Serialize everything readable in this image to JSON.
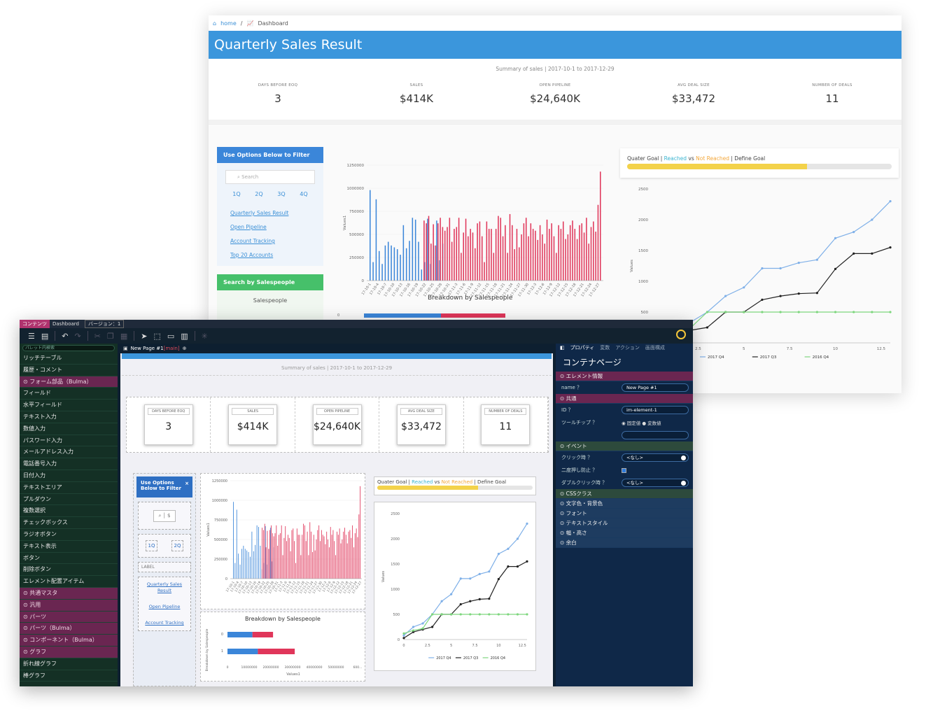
{
  "back": {
    "breadcrumb": {
      "home": "home",
      "sep": "/",
      "current": "Dashboard"
    },
    "title": "Quarterly Sales Result",
    "summary": "Summary of sales | 2017-10-1 to 2017-12-29",
    "kpis": [
      {
        "label": "DAYS BEFORE EOQ",
        "value": "3"
      },
      {
        "label": "SALES",
        "value": "$414K"
      },
      {
        "label": "OPEN PIPELINE",
        "value": "$24,640K"
      },
      {
        "label": "AVG DEAL SIZE",
        "value": "$33,472"
      },
      {
        "label": "NUMBER OF DEALS",
        "value": "11"
      }
    ],
    "filter": {
      "title": "Use Options Below to Filter",
      "search_placeholder": "Search",
      "quarters": [
        "1Q",
        "2Q",
        "3Q",
        "4Q"
      ],
      "links": [
        "Quarterly Sales Result",
        "Open Pipeline",
        "Account Tracking",
        "Top 20 Accounts"
      ]
    },
    "salespeople": {
      "title": "Search by Salespeople",
      "label": "Salespeople"
    },
    "goal": {
      "prefix": "Quater Goal | ",
      "reached": "Reached",
      "vs": " vs ",
      "not_reached": "Not Reached",
      "suffix": " | Define Goal",
      "fill": 0.68
    },
    "breakdown_title": "Breakdown by Salespeople",
    "bar_ylabel": "Values1",
    "line_ylabel": "Values",
    "colors": {
      "blue": "#3b86d9",
      "red": "#e0365a",
      "green": "#7ed67e",
      "black": "#222222",
      "lineblue": "#7fb0e8"
    }
  },
  "front": {
    "topbar": {
      "contents": "コンテンツ",
      "dashboard": "Dashboard",
      "version": "バージョン：1"
    },
    "palette_search_placeholder": "パレット内検索",
    "palette": [
      {
        "label": "リッチテーブル",
        "cat": false
      },
      {
        "label": "履歴・コメント",
        "cat": false
      },
      {
        "label": "フォーム部品（Bulma）",
        "cat": true
      },
      {
        "label": "フィールド",
        "cat": false
      },
      {
        "label": "水平フィールド",
        "cat": false
      },
      {
        "label": "テキスト入力",
        "cat": false
      },
      {
        "label": "数値入力",
        "cat": false
      },
      {
        "label": "パスワード入力",
        "cat": false
      },
      {
        "label": "メールアドレス入力",
        "cat": false
      },
      {
        "label": "電話番号入力",
        "cat": false
      },
      {
        "label": "日付入力",
        "cat": false
      },
      {
        "label": "テキストエリア",
        "cat": false
      },
      {
        "label": "プルダウン",
        "cat": false
      },
      {
        "label": "複数選択",
        "cat": false
      },
      {
        "label": "チェックボックス",
        "cat": false
      },
      {
        "label": "ラジオボタン",
        "cat": false
      },
      {
        "label": "テキスト表示",
        "cat": false
      },
      {
        "label": "ボタン",
        "cat": false
      },
      {
        "label": "削除ボタン",
        "cat": false
      },
      {
        "label": "エレメント配置アイテム",
        "cat": false
      },
      {
        "label": "共通マスタ",
        "cat": true
      },
      {
        "label": "汎用",
        "cat": true
      },
      {
        "label": "パーツ",
        "cat": true
      },
      {
        "label": "パーツ（Bulma）",
        "cat": true
      },
      {
        "label": "コンポーネント（Bulma）",
        "cat": true
      },
      {
        "label": "グラフ",
        "cat": true
      },
      {
        "label": "折れ線グラフ",
        "cat": false
      },
      {
        "label": "棒グラフ",
        "cat": false
      }
    ],
    "page_tab": {
      "name": "New Page #1",
      "tag": "[main]"
    },
    "canvas": {
      "summary": "Summary of sales | 2017-10-1 to 2017-12-29",
      "filter_title": "Use Options Below to Filter",
      "filter_close": "×",
      "q_buttons": [
        "1Q",
        "2Q"
      ],
      "label": "LABEL",
      "links": [
        "Quarterly Sales Result",
        "Open Pipeline",
        "Account Tracking"
      ],
      "breakdown_title": "Breakdown by Salespeople",
      "hbar_ylabel": "Breakdown by Salespeople",
      "hbar_xlabel": "Values1",
      "hbar_rows": [
        {
          "label": "0",
          "blue": 11500000,
          "red": 9500000
        },
        {
          "label": "1",
          "blue": 14000000,
          "red": 17000000
        }
      ],
      "hbar_ticks": [
        "0",
        "10000000",
        "20000000",
        "30000000",
        "40000000",
        "50000000",
        "600..."
      ],
      "goal_fill": 0.65
    },
    "props": {
      "tabs": [
        "プロパティ",
        "変数",
        "アクション",
        "画面構成"
      ],
      "title": "コンテナページ",
      "sections": {
        "element_info": "エレメント情報",
        "common": "共通",
        "event": "イベント",
        "css": "CSSクラス",
        "color": "文字色・背景色",
        "font": "フォント",
        "text_style": "テキストスタイル",
        "size": "幅・高さ",
        "margin": "余白"
      },
      "name_label": "name ？",
      "name_value": "New Page #1",
      "id_label": "ID ？",
      "id_value": "im-element-1",
      "tooltip_label": "ツールチップ ？",
      "tooltip_opt1": "固定値",
      "tooltip_opt2": "変数値",
      "click_label": "クリック時 ？",
      "click_value": "<なし>",
      "double_label": "二度押し防止 ？",
      "dbl_label": "ダブルクリック時 ？",
      "dbl_value": "<なし>"
    }
  },
  "chart_data": [
    {
      "type": "bar",
      "title": "",
      "ylabel": "Values1",
      "ylim": [
        0,
        1250000
      ],
      "yticks": [
        "0",
        "250000",
        "500000",
        "750000",
        "1000000",
        "1250000"
      ],
      "xticks": [
        "17-10-1",
        "17-10-4",
        "17-10-7",
        "17-10-10",
        "17-10-13",
        "17-10-16",
        "17-10-19",
        "17-10-22",
        "17-10-25",
        "17-10-28",
        "17-10-31",
        "17-11-3",
        "17-11-6",
        "17-11-9",
        "17-11-12",
        "17-11-15",
        "17-11-18",
        "17-11-21",
        "17-11-24",
        "17-11-27",
        "17-11-30",
        "17-12-3",
        "17-12-6",
        "17-12-9",
        "17-12-12",
        "17-12-15",
        "17-12-18",
        "17-12-21",
        "17-12-24",
        "17-12-27"
      ],
      "series": [
        {
          "color": "#3b86d9",
          "values": [
            980000,
            200000,
            880000,
            320000,
            180000,
            380000,
            420000,
            380000,
            360000,
            340000,
            280000,
            600000,
            350000,
            430000,
            680000,
            660000,
            420000,
            120000,
            200000,
            670000,
            180000,
            380000,
            650000,
            220000,
            400000
          ]
        },
        {
          "color": "#e0365a",
          "values": [
            650000,
            620000,
            700000,
            400000,
            610000,
            380000,
            620000,
            680000,
            580000,
            540000,
            580000,
            680000,
            420000,
            560000,
            580000,
            680000,
            300000,
            520000,
            670000,
            480000,
            560000,
            520000,
            350000,
            620000,
            640000,
            480000,
            200000,
            640000,
            560000,
            560000,
            300000,
            560000,
            700000,
            680000,
            480000,
            600000,
            300000,
            720000,
            600000,
            340000,
            560000,
            360000,
            500000,
            620000,
            680000,
            480000,
            620000,
            560000,
            540000,
            440000,
            600000,
            500000,
            400000,
            660000,
            560000,
            620000,
            480000,
            300000,
            600000,
            560000,
            640000,
            450000,
            500000,
            600000,
            650000,
            560000,
            450000,
            600000,
            620000,
            520000,
            680000,
            400000,
            580000,
            640000,
            530000,
            820000,
            1180000
          ]
        }
      ]
    },
    {
      "type": "line",
      "ylabel": "Values",
      "xticks": [
        "0",
        "2.5",
        "5",
        "7.5",
        "10",
        "12.5"
      ],
      "yticks": [
        "0",
        "500",
        "1000",
        "1500",
        "2000",
        "2500"
      ],
      "xlim": [
        0,
        13
      ],
      "ylim": [
        0,
        2500
      ],
      "legend": "bottom",
      "series": [
        {
          "name": "2017 Q4",
          "color": "#7fb0e8",
          "x": [
            0,
            1,
            2,
            3,
            4,
            5,
            6,
            7,
            8,
            9,
            10,
            11,
            12,
            13
          ],
          "values": [
            80,
            250,
            320,
            500,
            760,
            900,
            1210,
            1210,
            1300,
            1350,
            1700,
            1800,
            2000,
            2300
          ]
        },
        {
          "name": "2017 Q3",
          "color": "#222222",
          "x": [
            0,
            1,
            2,
            3,
            4,
            5,
            6,
            7,
            8,
            9,
            10,
            11,
            12,
            13
          ],
          "values": [
            30,
            150,
            200,
            250,
            500,
            500,
            700,
            760,
            800,
            810,
            1200,
            1450,
            1450,
            1550
          ]
        },
        {
          "name": "2016 Q4",
          "color": "#7ed67e",
          "x": [
            0,
            1,
            2,
            3,
            4,
            5,
            6,
            7,
            8,
            9,
            10,
            11,
            12,
            13
          ],
          "values": [
            120,
            180,
            220,
            500,
            500,
            500,
            500,
            500,
            500,
            500,
            500,
            500,
            500,
            500
          ]
        }
      ]
    }
  ]
}
